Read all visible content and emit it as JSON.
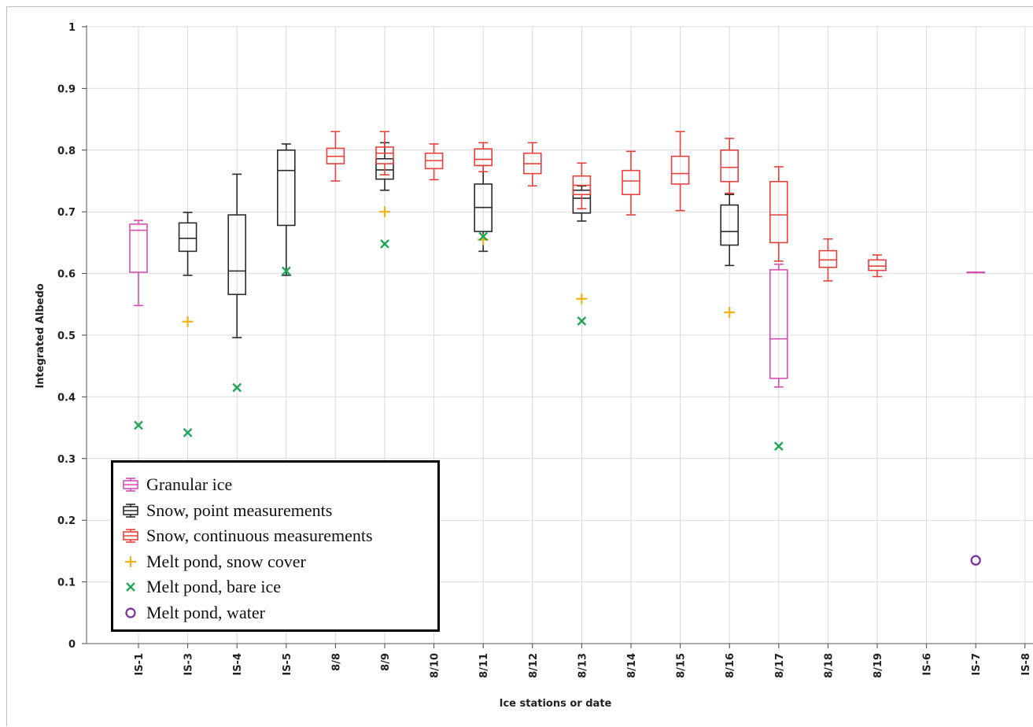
{
  "colors": {
    "granular_ice": "#d44fb0",
    "snow_point": "#2b2b2b",
    "snow_continuous": "#e8403a",
    "melt_snow_cover": "#f2b317",
    "melt_bare_ice": "#22a65a",
    "melt_water": "#7a2ea0",
    "grid": "#d9d9d9"
  },
  "chart_data": {
    "type": "box",
    "xlabel": "Ice stations or date",
    "ylabel": "Integrated Albedo",
    "ylim": [
      0,
      1
    ],
    "yticks": [
      "0",
      "0.1",
      "0.2",
      "0.3",
      "0.4",
      "0.5",
      "0.6",
      "0.7",
      "0.8",
      "0.9",
      "1"
    ],
    "categories": [
      "IS-1",
      "IS-3",
      "IS-4",
      "IS-5",
      "8/8",
      "8/9",
      "8/10",
      "8/11",
      "8/12",
      "8/13",
      "8/14",
      "8/15",
      "8/16",
      "8/17",
      "8/18",
      "8/19",
      "IS-6",
      "IS-7",
      "IS-8"
    ],
    "grid": true,
    "legend_position": "bottom-left",
    "box_series": [
      {
        "name": "Granular ice",
        "color_key": "granular_ice",
        "boxes": [
          {
            "category": "IS-1",
            "min": 0.548,
            "q1": 0.602,
            "median": 0.67,
            "q3": 0.68,
            "max": 0.686
          },
          {
            "category": "8/17",
            "min": 0.416,
            "q1": 0.43,
            "median": 0.494,
            "q3": 0.606,
            "max": 0.615
          },
          {
            "category": "IS-7",
            "min": 0.602,
            "q1": 0.602,
            "median": 0.602,
            "q3": 0.602,
            "max": 0.602
          }
        ]
      },
      {
        "name": "Snow, point measurements",
        "color_key": "snow_point",
        "boxes": [
          {
            "category": "IS-3",
            "min": 0.597,
            "q1": 0.636,
            "median": 0.657,
            "q3": 0.682,
            "max": 0.699
          },
          {
            "category": "IS-4",
            "min": 0.496,
            "q1": 0.566,
            "median": 0.604,
            "q3": 0.695,
            "max": 0.761
          },
          {
            "category": "IS-5",
            "min": 0.597,
            "q1": 0.678,
            "median": 0.767,
            "q3": 0.8,
            "max": 0.81
          },
          {
            "category": "8/9",
            "min": 0.735,
            "q1": 0.753,
            "median": 0.768,
            "q3": 0.786,
            "max": 0.812
          },
          {
            "category": "8/11",
            "min": 0.636,
            "q1": 0.668,
            "median": 0.707,
            "q3": 0.745,
            "max": 0.775
          },
          {
            "category": "8/13",
            "min": 0.685,
            "q1": 0.698,
            "median": 0.722,
            "q3": 0.735,
            "max": 0.742
          },
          {
            "category": "8/16",
            "min": 0.613,
            "q1": 0.646,
            "median": 0.668,
            "q3": 0.711,
            "max": 0.728
          }
        ]
      },
      {
        "name": "Snow, continuous measurements",
        "color_key": "snow_continuous",
        "boxes": [
          {
            "category": "8/8",
            "min": 0.75,
            "q1": 0.778,
            "median": 0.79,
            "q3": 0.803,
            "max": 0.83
          },
          {
            "category": "8/9",
            "min": 0.76,
            "q1": 0.778,
            "median": 0.795,
            "q3": 0.805,
            "max": 0.83
          },
          {
            "category": "8/10",
            "min": 0.752,
            "q1": 0.77,
            "median": 0.783,
            "q3": 0.795,
            "max": 0.81
          },
          {
            "category": "8/11",
            "min": 0.765,
            "q1": 0.775,
            "median": 0.785,
            "q3": 0.802,
            "max": 0.812
          },
          {
            "category": "8/12",
            "min": 0.742,
            "q1": 0.762,
            "median": 0.778,
            "q3": 0.795,
            "max": 0.812
          },
          {
            "category": "8/13",
            "min": 0.705,
            "q1": 0.728,
            "median": 0.743,
            "q3": 0.758,
            "max": 0.779
          },
          {
            "category": "8/14",
            "min": 0.695,
            "q1": 0.728,
            "median": 0.75,
            "q3": 0.767,
            "max": 0.798
          },
          {
            "category": "8/15",
            "min": 0.702,
            "q1": 0.745,
            "median": 0.762,
            "q3": 0.79,
            "max": 0.83
          },
          {
            "category": "8/16",
            "min": 0.73,
            "q1": 0.749,
            "median": 0.772,
            "q3": 0.8,
            "max": 0.819
          },
          {
            "category": "8/17",
            "min": 0.62,
            "q1": 0.65,
            "median": 0.695,
            "q3": 0.749,
            "max": 0.773
          },
          {
            "category": "8/18",
            "min": 0.588,
            "q1": 0.61,
            "median": 0.622,
            "q3": 0.637,
            "max": 0.656
          },
          {
            "category": "8/19",
            "min": 0.595,
            "q1": 0.605,
            "median": 0.612,
            "q3": 0.622,
            "max": 0.63
          }
        ]
      }
    ],
    "point_series": [
      {
        "name": "Melt pond, snow cover",
        "marker": "plus",
        "color_key": "melt_snow_cover",
        "points": [
          {
            "category": "IS-3",
            "y": 0.522
          },
          {
            "category": "8/9",
            "y": 0.7
          },
          {
            "category": "8/11",
            "y": 0.655
          },
          {
            "category": "8/13",
            "y": 0.559
          },
          {
            "category": "8/16",
            "y": 0.537
          }
        ]
      },
      {
        "name": "Melt pond, bare ice",
        "marker": "x",
        "color_key": "melt_bare_ice",
        "points": [
          {
            "category": "IS-1",
            "y": 0.354
          },
          {
            "category": "IS-3",
            "y": 0.342
          },
          {
            "category": "IS-4",
            "y": 0.415
          },
          {
            "category": "IS-5",
            "y": 0.604
          },
          {
            "category": "8/9",
            "y": 0.648
          },
          {
            "category": "8/11",
            "y": 0.66
          },
          {
            "category": "8/13",
            "y": 0.523
          },
          {
            "category": "8/17",
            "y": 0.32
          }
        ]
      },
      {
        "name": "Melt pond, water",
        "marker": "circle",
        "color_key": "melt_water",
        "points": [
          {
            "category": "IS-7",
            "y": 0.135
          }
        ]
      }
    ]
  }
}
